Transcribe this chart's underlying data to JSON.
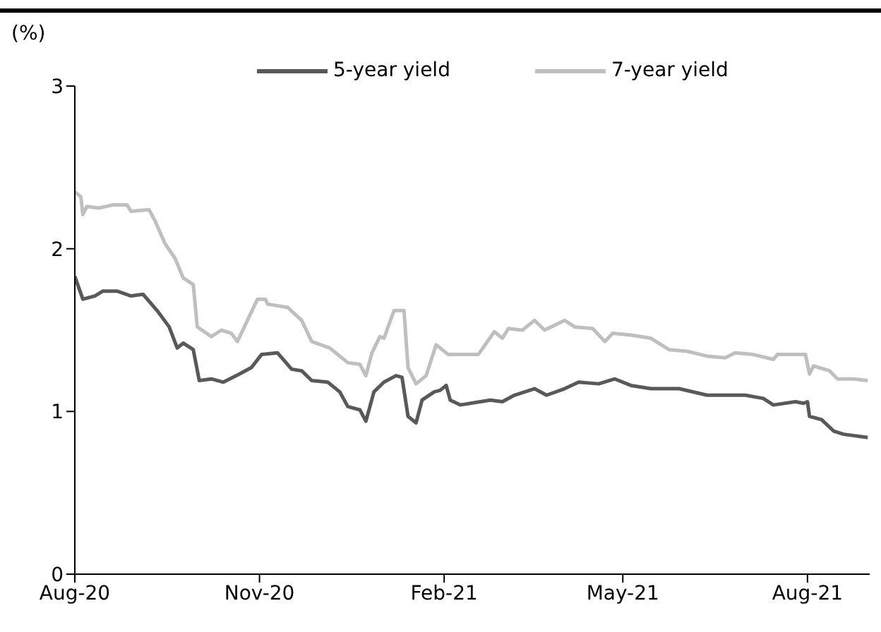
{
  "chart_data": {
    "type": "line",
    "ylabel": "(%)",
    "legend": "top",
    "grid": false,
    "ylim": [
      0,
      3
    ],
    "yticks": [
      0,
      1,
      2,
      3
    ],
    "xlim": [
      "2020-08-01",
      "2021-09-01"
    ],
    "xticks": [
      {
        "value": "2020-08-01",
        "label": "Aug-20"
      },
      {
        "value": "2020-11-01",
        "label": "Nov-20"
      },
      {
        "value": "2021-02-01",
        "label": "Feb-21"
      },
      {
        "value": "2021-05-01",
        "label": "May-21"
      },
      {
        "value": "2021-08-01",
        "label": "Aug-21"
      }
    ],
    "series": [
      {
        "name": "5-year yield",
        "color": "#595959",
        "x": [
          "2020-08-01",
          "2020-08-05",
          "2020-08-11",
          "2020-08-15",
          "2020-08-22",
          "2020-08-29",
          "2020-09-04",
          "2020-09-11",
          "2020-09-17",
          "2020-09-21",
          "2020-09-24",
          "2020-09-29",
          "2020-10-02",
          "2020-10-08",
          "2020-10-14",
          "2020-10-22",
          "2020-10-28",
          "2020-11-02",
          "2020-11-10",
          "2020-11-17",
          "2020-11-22",
          "2020-11-27",
          "2020-12-05",
          "2020-12-11",
          "2020-12-15",
          "2020-12-21",
          "2020-12-24",
          "2020-12-28",
          "2021-01-02",
          "2021-01-08",
          "2021-01-11",
          "2021-01-14",
          "2021-01-18",
          "2021-01-21",
          "2021-01-27",
          "2021-01-30",
          "2021-02-02",
          "2021-02-04",
          "2021-02-09",
          "2021-02-19",
          "2021-02-24",
          "2021-03-02",
          "2021-03-08",
          "2021-03-18",
          "2021-03-24",
          "2021-04-02",
          "2021-04-09",
          "2021-04-19",
          "2021-04-27",
          "2021-05-05",
          "2021-05-15",
          "2021-05-29",
          "2021-06-12",
          "2021-07-01",
          "2021-07-10",
          "2021-07-15",
          "2021-07-26",
          "2021-07-30",
          "2021-08-01",
          "2021-08-02",
          "2021-08-08",
          "2021-08-14",
          "2021-08-19",
          "2021-08-31"
        ],
        "values": [
          1.83,
          1.69,
          1.71,
          1.74,
          1.74,
          1.71,
          1.72,
          1.62,
          1.52,
          1.39,
          1.42,
          1.38,
          1.19,
          1.2,
          1.18,
          1.23,
          1.27,
          1.35,
          1.36,
          1.26,
          1.25,
          1.19,
          1.18,
          1.12,
          1.03,
          1.01,
          0.94,
          1.12,
          1.18,
          1.22,
          1.21,
          0.97,
          0.93,
          1.07,
          1.12,
          1.13,
          1.16,
          1.07,
          1.04,
          1.06,
          1.07,
          1.06,
          1.1,
          1.14,
          1.1,
          1.14,
          1.18,
          1.17,
          1.2,
          1.16,
          1.14,
          1.14,
          1.1,
          1.1,
          1.08,
          1.04,
          1.06,
          1.05,
          1.06,
          0.97,
          0.95,
          0.88,
          0.86,
          0.84
        ]
      },
      {
        "name": "7-year yield",
        "color": "#bfbfbf",
        "x": [
          "2020-08-01",
          "2020-08-04",
          "2020-08-05",
          "2020-08-07",
          "2020-08-13",
          "2020-08-20",
          "2020-08-27",
          "2020-08-29",
          "2020-09-07",
          "2020-09-10",
          "2020-09-15",
          "2020-09-20",
          "2020-09-24",
          "2020-09-29",
          "2020-10-01",
          "2020-10-08",
          "2020-10-13",
          "2020-10-18",
          "2020-10-21",
          "2020-10-26",
          "2020-10-31",
          "2020-11-04",
          "2020-11-05",
          "2020-11-15",
          "2020-11-22",
          "2020-11-27",
          "2020-12-06",
          "2020-12-15",
          "2020-12-21",
          "2020-12-24",
          "2020-12-27",
          "2020-12-31",
          "2021-01-02",
          "2021-01-07",
          "2021-01-12",
          "2021-01-14",
          "2021-01-18",
          "2021-01-23",
          "2021-01-28",
          "2021-02-03",
          "2021-02-18",
          "2021-02-26",
          "2021-03-02",
          "2021-03-05",
          "2021-03-12",
          "2021-03-18",
          "2021-03-23",
          "2021-04-02",
          "2021-04-07",
          "2021-04-16",
          "2021-04-22",
          "2021-04-26",
          "2021-05-05",
          "2021-05-15",
          "2021-05-24",
          "2021-06-02",
          "2021-06-12",
          "2021-06-21",
          "2021-06-26",
          "2021-07-05",
          "2021-07-15",
          "2021-07-17",
          "2021-07-31",
          "2021-08-02",
          "2021-08-04",
          "2021-08-12",
          "2021-08-16",
          "2021-08-24",
          "2021-08-31"
        ],
        "values": [
          2.35,
          2.32,
          2.21,
          2.26,
          2.25,
          2.27,
          2.27,
          2.23,
          2.24,
          2.17,
          2.03,
          1.94,
          1.82,
          1.78,
          1.52,
          1.46,
          1.5,
          1.48,
          1.43,
          1.56,
          1.69,
          1.69,
          1.66,
          1.64,
          1.56,
          1.43,
          1.39,
          1.3,
          1.29,
          1.22,
          1.36,
          1.46,
          1.45,
          1.62,
          1.62,
          1.27,
          1.17,
          1.22,
          1.41,
          1.35,
          1.35,
          1.49,
          1.45,
          1.51,
          1.5,
          1.56,
          1.5,
          1.56,
          1.52,
          1.51,
          1.43,
          1.48,
          1.47,
          1.45,
          1.38,
          1.37,
          1.34,
          1.33,
          1.36,
          1.35,
          1.32,
          1.35,
          1.35,
          1.23,
          1.28,
          1.25,
          1.2,
          1.2,
          1.19
        ]
      }
    ]
  }
}
